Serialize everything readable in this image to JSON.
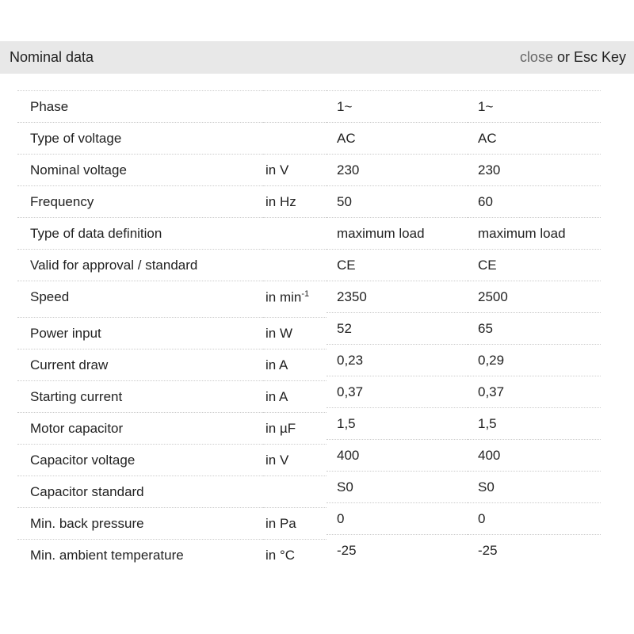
{
  "header": {
    "title": "Nominal data",
    "close_label": "close",
    "close_suffix": " or Esc Key"
  },
  "rows": [
    {
      "label": "Phase",
      "unit": "",
      "v1": "1~",
      "v2": "1~"
    },
    {
      "label": "Type of voltage",
      "unit": "",
      "v1": "AC",
      "v2": "AC"
    },
    {
      "label": "Nominal voltage",
      "unit": "in V",
      "v1": "230",
      "v2": "230"
    },
    {
      "label": "Frequency",
      "unit": "in Hz",
      "v1": "50",
      "v2": "60"
    },
    {
      "label": "Type of data definition",
      "unit": "",
      "v1": "maximum load",
      "v2": "maximum load"
    },
    {
      "label": "Valid for approval / standard",
      "unit": "",
      "v1": "CE",
      "v2": "CE"
    },
    {
      "label": "Speed",
      "unit": "in min",
      "unit_sup": "-1",
      "v1": "2350",
      "v2": "2500"
    },
    {
      "label": "Power input",
      "unit": "in W",
      "v1": "52",
      "v2": "65"
    },
    {
      "label": "Current draw",
      "unit": "in A",
      "v1": "0,23",
      "v2": "0,29"
    },
    {
      "label": "Starting current",
      "unit": "in A",
      "v1": "0,37",
      "v2": "0,37"
    },
    {
      "label": "Motor capacitor",
      "unit": "in µF",
      "v1": "1,5",
      "v2": "1,5"
    },
    {
      "label": "Capacitor voltage",
      "unit": "in V",
      "v1": "400",
      "v2": "400"
    },
    {
      "label": "Capacitor standard",
      "unit": "",
      "v1": "S0",
      "v2": "S0"
    },
    {
      "label": "Min. back pressure",
      "unit": "in Pa",
      "v1": "0",
      "v2": "0"
    },
    {
      "label": "Min. ambient temperature",
      "unit": "in °C",
      "v1": "-25",
      "v2": "-25"
    }
  ]
}
